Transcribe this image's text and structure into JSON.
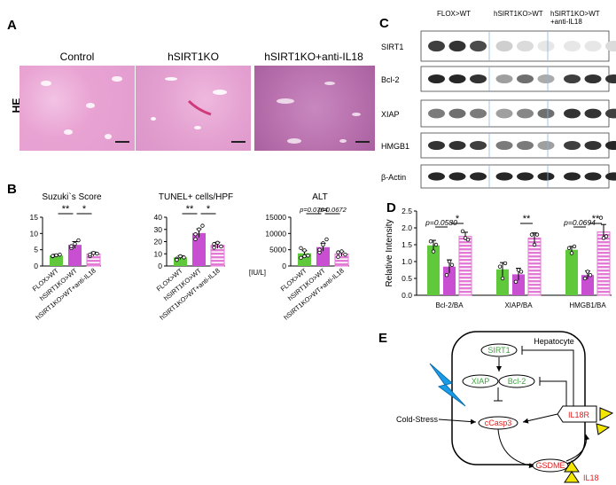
{
  "panelA": {
    "letter": "A",
    "side_label": "HE",
    "titles": [
      "Control",
      "hSIRT1KO",
      "hSIRT1KO+anti-IL18"
    ],
    "colors": [
      "#e9a3d3",
      "#e3a0d0",
      "#c27ab8"
    ]
  },
  "panelB": {
    "letter": "B",
    "charts": [
      {
        "title": "Suzuki`s Score",
        "type": "bar",
        "categories": [
          "FLOX>WT",
          "hSIRT1KO>WT",
          "hSIRT1KO>WT+anti-IL18"
        ],
        "values": [
          3.2,
          6.5,
          3.7
        ],
        "errors": [
          0.4,
          1.0,
          0.6
        ],
        "ylim": [
          0,
          15
        ],
        "yticks": [
          "0",
          "5",
          "10",
          "15"
        ],
        "ylabel": "",
        "sig": [
          {
            "from": 0,
            "to": 1,
            "label": "**"
          },
          {
            "from": 1,
            "to": 2,
            "label": "*"
          }
        ],
        "points": [
          [
            3.0,
            3.3,
            3.5,
            3.1
          ],
          [
            5.5,
            6.8,
            7.9,
            6.1
          ],
          [
            3.0,
            4.0,
            3.8,
            3.5
          ]
        ]
      },
      {
        "title": "TUNEL+ cells/HPF",
        "type": "bar",
        "categories": [
          "FLOX>WT",
          "hSIRT1KO>WT",
          "hSIRT1KO>WT+anti-IL18"
        ],
        "values": [
          7,
          27,
          17
        ],
        "errors": [
          1.5,
          3.5,
          2.5
        ],
        "ylim": [
          0,
          40
        ],
        "yticks": [
          "0",
          "10",
          "20",
          "30",
          "40"
        ],
        "ylabel": "",
        "sig": [
          {
            "from": 0,
            "to": 1,
            "label": "**"
          },
          {
            "from": 1,
            "to": 2,
            "label": "*"
          }
        ],
        "points": [
          [
            6,
            8,
            7,
            5
          ],
          [
            22,
            30,
            33,
            26
          ],
          [
            15,
            19,
            16,
            18
          ]
        ]
      },
      {
        "title": "ALT",
        "type": "bar",
        "categories": [
          "FLOX>WT",
          "hSIRT1KO>WT",
          "hSIRT1KO>WT+anti-IL18"
        ],
        "values": [
          3900,
          5800,
          3700
        ],
        "errors": [
          800,
          1200,
          700
        ],
        "ylim": [
          0,
          15000
        ],
        "yticks": [
          "0",
          "5000",
          "10000",
          "15000"
        ],
        "ylabel": "[IU/L]",
        "sig": [
          {
            "from": 0,
            "to": 1,
            "label": "p=0.0764"
          },
          {
            "from": 1,
            "to": 2,
            "label": "p=0.0672"
          }
        ],
        "points": [
          [
            2500,
            4800,
            3200,
            5500,
            3000
          ],
          [
            4200,
            7000,
            8200,
            5000,
            6500
          ],
          [
            2800,
            4500,
            3500,
            4200
          ]
        ]
      }
    ]
  },
  "panelC": {
    "letter": "C",
    "groups": [
      "FLOX>WT",
      "hSIRT1KO>WT",
      "hSIRT1KO>WT\n+anti-IL18"
    ],
    "bands": [
      {
        "label": "SIRT1",
        "intensity": [
          0.8,
          0.85,
          0.75,
          0.2,
          0.15,
          0.1,
          0.1,
          0.1,
          0.15
        ]
      },
      {
        "label": "Bcl-2",
        "intensity": [
          0.9,
          0.9,
          0.85,
          0.4,
          0.6,
          0.35,
          0.8,
          0.85,
          0.85
        ]
      },
      {
        "label": "XIAP",
        "intensity": [
          0.55,
          0.6,
          0.55,
          0.4,
          0.5,
          0.6,
          0.85,
          0.85,
          0.8
        ]
      },
      {
        "label": "HMGB1",
        "intensity": [
          0.85,
          0.85,
          0.8,
          0.55,
          0.55,
          0.4,
          0.8,
          0.85,
          0.9
        ]
      },
      {
        "label": "β-Actin",
        "intensity": [
          0.9,
          0.9,
          0.9,
          0.9,
          0.9,
          0.9,
          0.9,
          0.9,
          0.9
        ]
      }
    ]
  },
  "panelD": {
    "letter": "D",
    "chart_data": {
      "type": "bar",
      "ylabel": "Relative Intensity",
      "ylim": [
        0,
        2.5
      ],
      "yticks": [
        "0.0",
        "0.5",
        "1.0",
        "1.5",
        "2.0",
        "2.5"
      ],
      "categories": [
        "Bcl-2/BA",
        "XIAP/BA",
        "HMGB1/BA"
      ],
      "series": [
        {
          "values": [
            1.48,
            0.77,
            1.35
          ],
          "errors": [
            0.15,
            0.2,
            0.1
          ],
          "color": "#5fc93b"
        },
        {
          "values": [
            0.85,
            0.62,
            0.6
          ],
          "errors": [
            0.2,
            0.18,
            0.12
          ],
          "color": "#c84fd1"
        },
        {
          "values": [
            1.75,
            1.7,
            1.88
          ],
          "errors": [
            0.12,
            0.15,
            0.22
          ],
          "color": "#e27ad6"
        }
      ],
      "sig": [
        {
          "cat": 0,
          "from": 0,
          "to": 1,
          "label": "p=0.0580"
        },
        {
          "cat": 0,
          "from": 1,
          "to": 2,
          "label": "*"
        },
        {
          "cat": 1,
          "from": 1,
          "to": 2,
          "label": "**"
        },
        {
          "cat": 2,
          "from": 0,
          "to": 1,
          "label": "p=0.0694"
        },
        {
          "cat": 2,
          "from": 1,
          "to": 2,
          "label": "**"
        }
      ],
      "points": [
        [
          [
            1.6,
            1.3,
            1.5
          ],
          [
            0.6,
            1.0,
            0.9
          ],
          [
            1.9,
            1.7,
            1.65
          ]
        ],
        [
          [
            0.85,
            0.5,
            0.95
          ],
          [
            0.4,
            0.75,
            0.7
          ],
          [
            1.8,
            1.5,
            1.8
          ]
        ],
        [
          [
            1.4,
            1.25,
            1.45
          ],
          [
            0.5,
            0.7,
            0.6
          ],
          [
            2.3,
            1.7,
            1.75
          ]
        ]
      ]
    }
  },
  "panelE": {
    "letter": "E",
    "hepatocyte": "Hepatocyte",
    "sirt1": "SIRT1",
    "xiap": "XIAP",
    "bcl2": "Bcl-2",
    "ccasp3": "cCasp3",
    "gsdme": "GSDME",
    "il18r": "IL18R",
    "il18": "IL18",
    "cold_stress": "Cold-Stress"
  },
  "colors": {
    "green": "#5fc93b",
    "purple": "#c84fd1",
    "pink": "#e27ad6",
    "red": "#e02020",
    "yellow": "#f3e600",
    "blue": "#1a9be6"
  }
}
